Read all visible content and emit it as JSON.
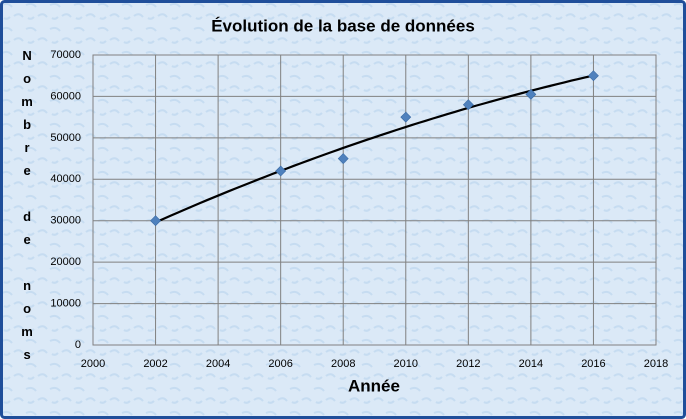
{
  "chart_data": {
    "type": "scatter",
    "title": "Évolution de la base de données",
    "x_label": "Année",
    "y_label": "Nombre de noms",
    "series": [
      {
        "name": "Nombre de noms",
        "color": "#4f81bd",
        "x": [
          2002,
          2006,
          2008,
          2010,
          2012,
          2014,
          2016
        ],
        "values": [
          30000,
          42000,
          45000,
          55000,
          58000,
          60500,
          65000
        ]
      }
    ],
    "trendline": "polynomial",
    "trendline_color": "#000000",
    "xlim": [
      2000,
      2018
    ],
    "xticks": [
      2000,
      2002,
      2004,
      2006,
      2008,
      2010,
      2012,
      2014,
      2016,
      2018
    ],
    "ylim": [
      0,
      70000
    ],
    "yticks": [
      0,
      10000,
      20000,
      30000,
      40000,
      50000,
      60000,
      70000
    ],
    "grid": true
  }
}
